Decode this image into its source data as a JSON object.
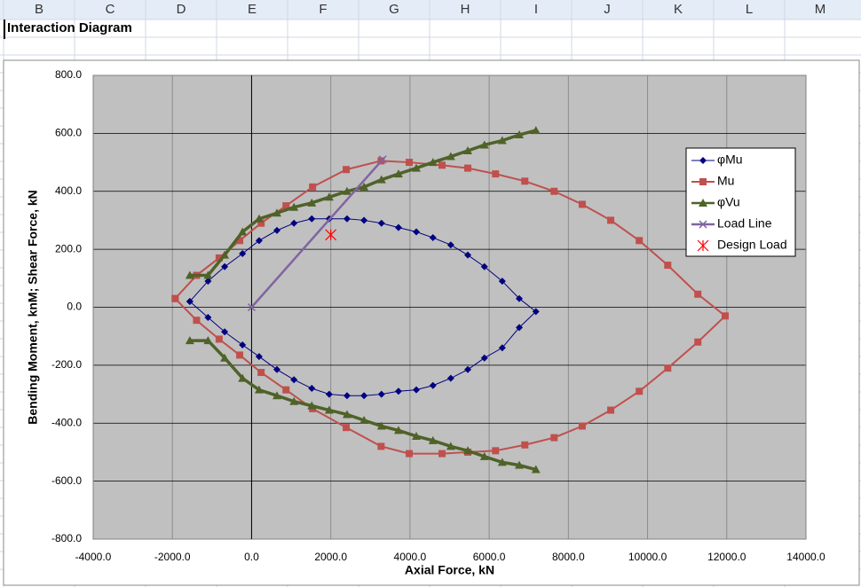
{
  "sheet": {
    "columns": [
      "B",
      "C",
      "D",
      "E",
      "F",
      "G",
      "H",
      "I",
      "J",
      "K",
      "L",
      "M"
    ],
    "cell_title": "Interaction Diagram"
  },
  "chart_data": {
    "type": "scatter",
    "x_label": "Axial Force, kN",
    "y_label": "Bending Moment, knM; Shear Force, kN",
    "xlim": [
      -4000,
      14000
    ],
    "xticks": [
      {
        "value": -4000,
        "label": "-4000.0"
      },
      {
        "value": -2000,
        "label": "-2000.0"
      },
      {
        "value": 0,
        "label": "0.0"
      },
      {
        "value": 2000,
        "label": "2000.0"
      },
      {
        "value": 4000,
        "label": "4000.0"
      },
      {
        "value": 6000,
        "label": "6000.0"
      },
      {
        "value": 8000,
        "label": "8000.0"
      },
      {
        "value": 10000,
        "label": "10000.0"
      },
      {
        "value": 12000,
        "label": "12000.0"
      },
      {
        "value": 14000,
        "label": "14000.0"
      }
    ],
    "ylim": [
      -800,
      800
    ],
    "yticks": [
      {
        "value": -800,
        "label": "-800.0"
      },
      {
        "value": -600,
        "label": "-600.0"
      },
      {
        "value": -400,
        "label": "-400.0"
      },
      {
        "value": -200,
        "label": "-200.0"
      },
      {
        "value": 0,
        "label": "0.0"
      },
      {
        "value": 200,
        "label": "200.0"
      },
      {
        "value": 400,
        "label": "400.0"
      },
      {
        "value": 600,
        "label": "600.0"
      },
      {
        "value": 800,
        "label": "800.0"
      }
    ],
    "grid": true,
    "legend": "right",
    "series": [
      {
        "name": "φMu",
        "color": "#000080",
        "marker": "diamond",
        "line": true,
        "line_width": 1,
        "x": [
          -1560,
          -1100,
          -680,
          -230,
          190,
          640,
          1070,
          1520,
          1960,
          2410,
          2840,
          3280,
          3710,
          4160,
          4580,
          5030,
          5460,
          5880,
          6330,
          6760,
          7180,
          6760,
          6330,
          5880,
          5460,
          5030,
          4580,
          4160,
          3710,
          3280,
          2840,
          2410,
          1960,
          1520,
          1070,
          640,
          190,
          -230,
          -680,
          -1100,
          -1560
        ],
        "values": [
          20,
          90,
          140,
          185,
          230,
          265,
          290,
          305,
          305,
          305,
          300,
          290,
          275,
          260,
          240,
          215,
          180,
          140,
          90,
          30,
          -15,
          -70,
          -140,
          -175,
          -215,
          -245,
          -270,
          -285,
          -290,
          -300,
          -305,
          -305,
          -300,
          -280,
          -250,
          -215,
          -170,
          -130,
          -85,
          -35,
          20
        ]
      },
      {
        "name": "Mu",
        "color": "#c0504d",
        "marker": "square",
        "line": true,
        "line_width": 2,
        "x": [
          -1930,
          -1390,
          -820,
          -300,
          240,
          870,
          1540,
          2390,
          3270,
          3980,
          4810,
          5460,
          6160,
          6900,
          7640,
          8350,
          9070,
          9790,
          10510,
          11270,
          11960,
          11270,
          10510,
          9790,
          9070,
          8350,
          7640,
          6900,
          6160,
          5460,
          4810,
          3980,
          3270,
          2390,
          1540,
          870,
          240,
          -300,
          -820,
          -1390,
          -1930
        ],
        "values": [
          30,
          110,
          170,
          230,
          290,
          350,
          415,
          475,
          505,
          500,
          490,
          480,
          460,
          435,
          400,
          355,
          300,
          230,
          145,
          45,
          -30,
          -120,
          -210,
          -290,
          -355,
          -410,
          -450,
          -475,
          -495,
          -500,
          -505,
          -505,
          -480,
          -415,
          -350,
          -285,
          -225,
          -165,
          -110,
          -45,
          30
        ]
      },
      {
        "name": "φVu",
        "color": "#4f6228",
        "marker": "triangle",
        "line": true,
        "line_width": 3.5,
        "x": [
          -1560,
          -1100,
          -680,
          -230,
          190,
          640,
          1070,
          1520,
          1960,
          2410,
          2840,
          3280,
          3710,
          4160,
          4580,
          5030,
          5460,
          5880,
          6330,
          6760,
          7180,
          null,
          -1560,
          -1100,
          -680,
          -230,
          190,
          640,
          1070,
          1520,
          1960,
          2410,
          2840,
          3280,
          3710,
          4160,
          4580,
          5030,
          5460,
          5880,
          6330,
          6760,
          7180
        ],
        "values": [
          110,
          110,
          180,
          260,
          305,
          325,
          345,
          360,
          380,
          400,
          415,
          440,
          460,
          480,
          500,
          520,
          540,
          560,
          575,
          595,
          610,
          null,
          -115,
          -115,
          -175,
          -245,
          -285,
          -305,
          -325,
          -340,
          -355,
          -370,
          -390,
          -410,
          -425,
          -445,
          -460,
          -480,
          -495,
          -515,
          -535,
          -545,
          -560
        ]
      },
      {
        "name": "Load Line",
        "color": "#8064a2",
        "marker": "x",
        "line": true,
        "line_width": 2.5,
        "x": [
          0,
          3310
        ],
        "values": [
          0,
          510
        ]
      },
      {
        "name": "Design Load",
        "color": "#ff0000",
        "marker": "asterisk",
        "line": false,
        "line_width": 0,
        "x": [
          2000
        ],
        "values": [
          250
        ]
      }
    ]
  }
}
